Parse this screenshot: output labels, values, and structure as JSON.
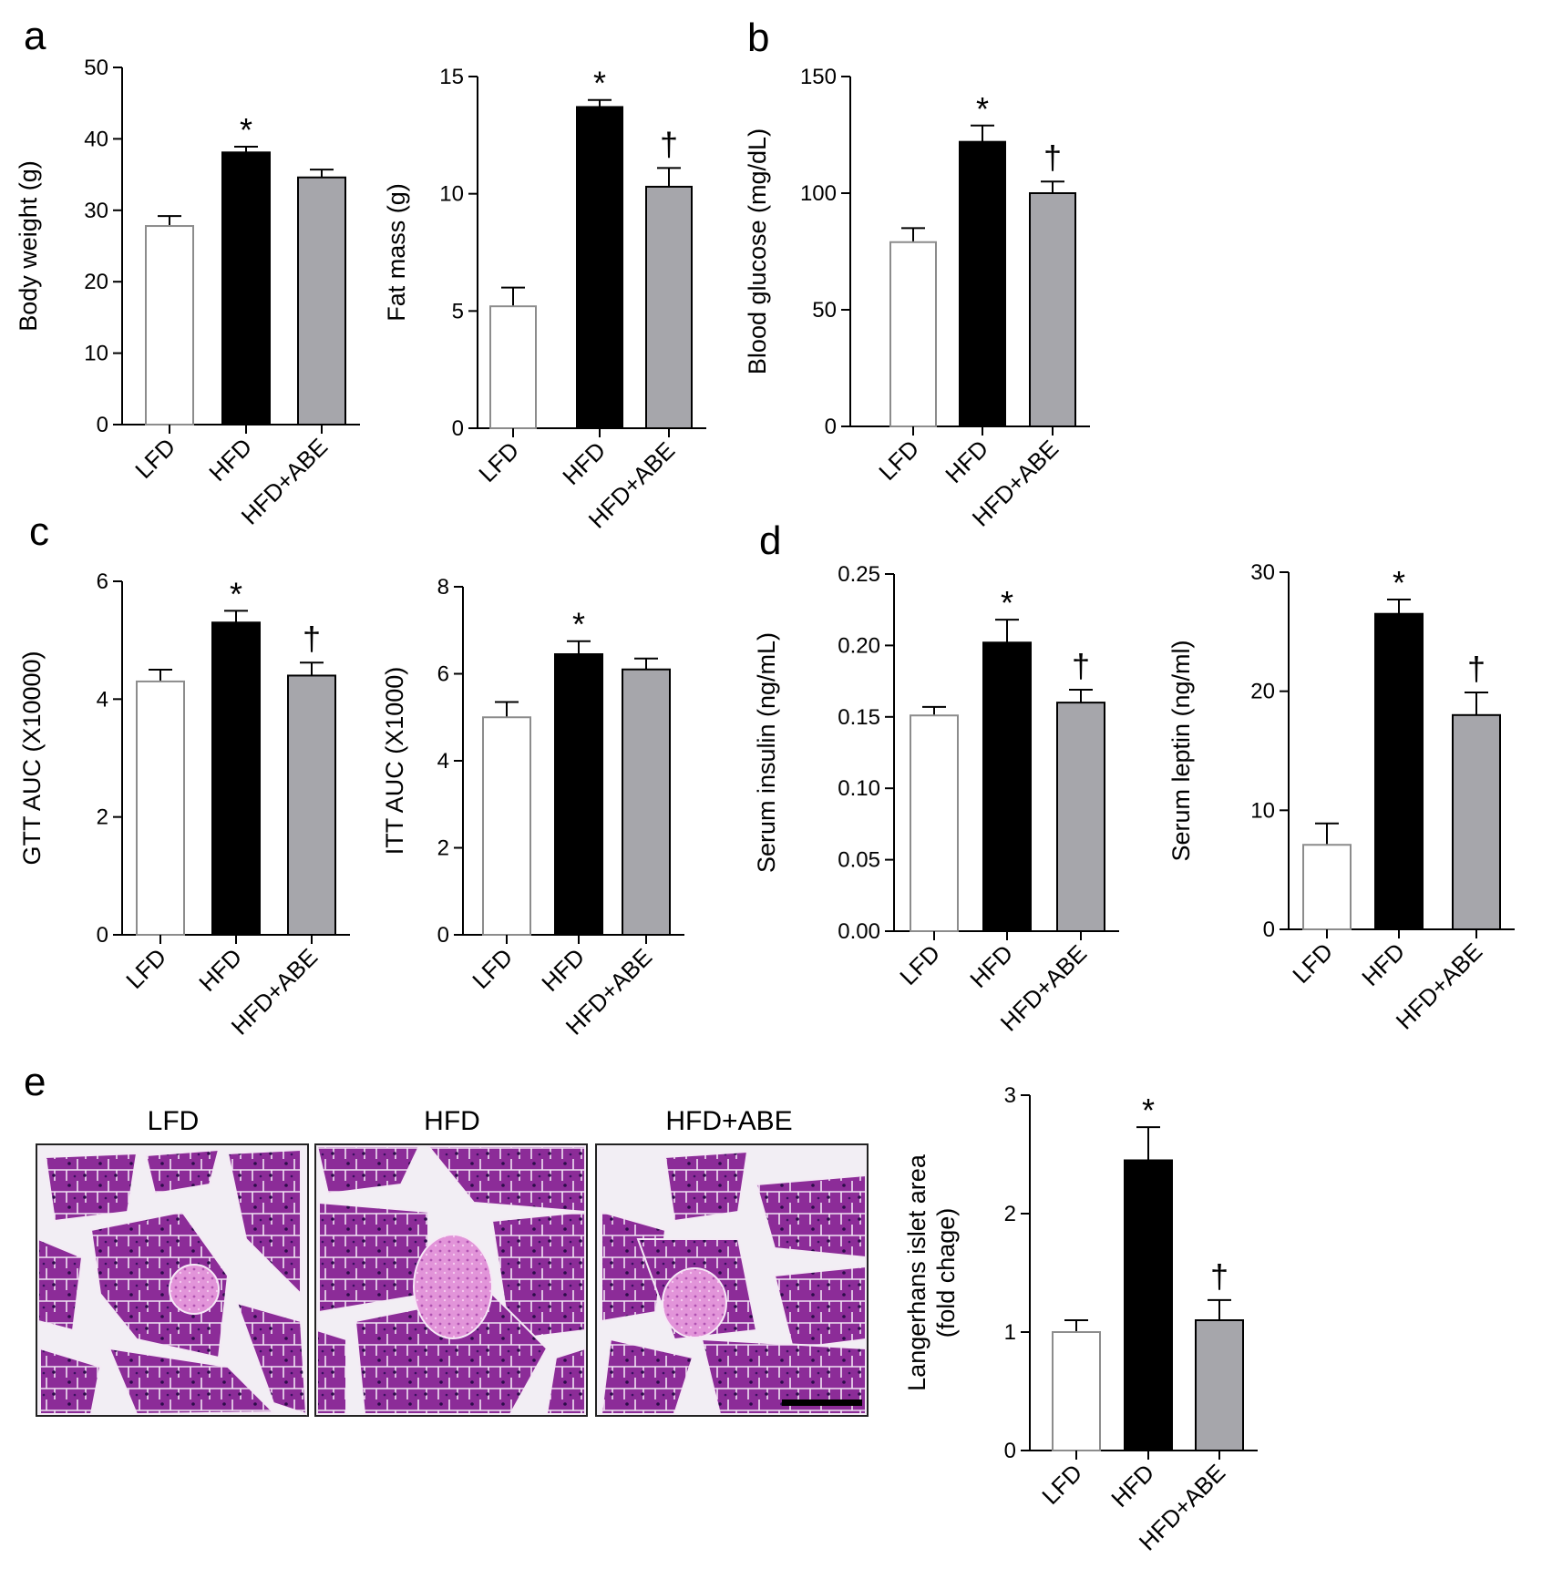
{
  "colors": {
    "LFD": "#ffffff",
    "HFD": "#000000",
    "HFD+ABE": "#a6a6ab",
    "tissue": "#b540a8",
    "tissue_dark": "#7a1f86",
    "islet": "#d77bd0",
    "background": "#eeeaf1"
  },
  "panel_letters": [
    "a",
    "b",
    "c",
    "d",
    "e"
  ],
  "chart_data": [
    {
      "id": "body-weight",
      "panel": "a",
      "type": "bar",
      "categories": [
        "LFD",
        "HFD",
        "HFD+ABE"
      ],
      "values": [
        27.8,
        38.1,
        34.6
      ],
      "errors": [
        1.4,
        0.8,
        1.1
      ],
      "marks": [
        "",
        "*",
        ""
      ],
      "ylabel": "Body weight (g)",
      "ylim": [
        0,
        50
      ],
      "yticks": [
        0,
        10,
        20,
        30,
        40,
        50
      ]
    },
    {
      "id": "fat-mass",
      "panel": "a",
      "type": "bar",
      "categories": [
        "LFD",
        "HFD",
        "HFD+ABE"
      ],
      "values": [
        5.2,
        13.7,
        10.3
      ],
      "errors": [
        0.8,
        0.3,
        0.8
      ],
      "marks": [
        "",
        "*",
        "†"
      ],
      "ylabel": "Fat mass (g)",
      "ylim": [
        0,
        15
      ],
      "yticks": [
        0,
        5,
        10,
        15
      ]
    },
    {
      "id": "blood-glucose",
      "panel": "b",
      "type": "bar",
      "categories": [
        "LFD",
        "HFD",
        "HFD+ABE"
      ],
      "values": [
        79,
        122,
        100
      ],
      "errors": [
        6,
        7,
        5
      ],
      "marks": [
        "",
        "*",
        "†"
      ],
      "ylabel": "Blood glucose (mg/dL)",
      "ylim": [
        0,
        150
      ],
      "yticks": [
        0,
        50,
        100,
        150
      ]
    },
    {
      "id": "gtt-auc",
      "panel": "c",
      "type": "bar",
      "categories": [
        "LFD",
        "HFD",
        "HFD+ABE"
      ],
      "values": [
        4.3,
        5.3,
        4.4
      ],
      "errors": [
        0.2,
        0.2,
        0.22
      ],
      "marks": [
        "",
        "*",
        "†"
      ],
      "ylabel": "GTT AUC  (X10000)",
      "ylim": [
        0,
        6
      ],
      "yticks": [
        0,
        2,
        4,
        6
      ]
    },
    {
      "id": "itt-auc",
      "panel": "c",
      "type": "bar",
      "categories": [
        "LFD",
        "HFD",
        "HFD+ABE"
      ],
      "values": [
        5.0,
        6.45,
        6.1
      ],
      "errors": [
        0.35,
        0.3,
        0.25
      ],
      "marks": [
        "",
        "*",
        ""
      ],
      "ylabel": "ITT AUC  (X1000)",
      "ylim": [
        0,
        8
      ],
      "yticks": [
        0,
        2,
        4,
        6,
        8
      ]
    },
    {
      "id": "serum-insulin",
      "panel": "d",
      "type": "bar",
      "categories": [
        "LFD",
        "HFD",
        "HFD+ABE"
      ],
      "values": [
        0.151,
        0.202,
        0.16
      ],
      "errors": [
        0.006,
        0.016,
        0.009
      ],
      "marks": [
        "",
        "*",
        "†"
      ],
      "ylabel": "Serum insulin  (ng/mL)",
      "ylim": [
        0,
        0.25
      ],
      "yticks": [
        0,
        0.05,
        0.1,
        0.15,
        0.2,
        0.25
      ],
      "ytick_labels": [
        "0.00",
        "0.05",
        "0.10",
        "0.15",
        "0.20",
        "0.25"
      ]
    },
    {
      "id": "serum-leptin",
      "panel": "d",
      "type": "bar",
      "categories": [
        "LFD",
        "HFD",
        "HFD+ABE"
      ],
      "values": [
        7.1,
        26.5,
        18.0
      ],
      "errors": [
        1.8,
        1.2,
        1.9
      ],
      "marks": [
        "",
        "*",
        "†"
      ],
      "ylabel": "Serum leptin (ng/ml)",
      "ylim": [
        0,
        30
      ],
      "yticks": [
        0,
        10,
        20,
        30
      ]
    },
    {
      "id": "islet-area",
      "panel": "e",
      "type": "bar",
      "categories": [
        "LFD",
        "HFD",
        "HFD+ABE"
      ],
      "values": [
        1.0,
        2.45,
        1.1
      ],
      "errors": [
        0.1,
        0.28,
        0.17
      ],
      "marks": [
        "",
        "*",
        "†"
      ],
      "ylabel": [
        "Langerhans islet area",
        "(fold chage)"
      ],
      "ylim": [
        0,
        3
      ],
      "yticks": [
        0,
        1,
        2,
        3
      ]
    }
  ],
  "micrographs": {
    "labels": [
      "LFD",
      "HFD",
      "HFD+ABE"
    ]
  }
}
